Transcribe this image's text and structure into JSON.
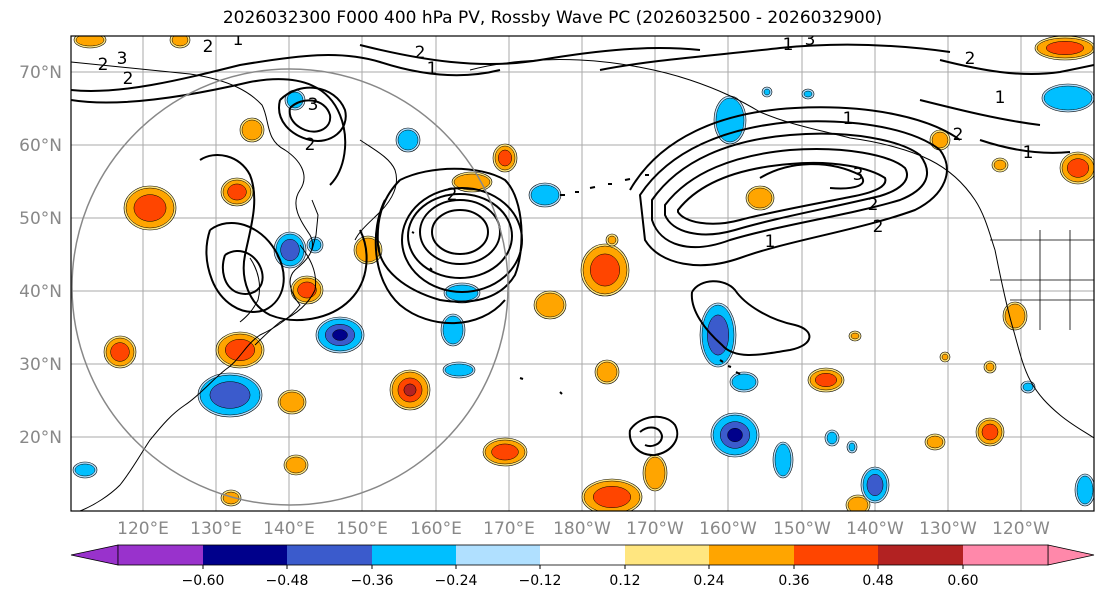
{
  "title": "2026032300 F000 400 hPa PV, Rossby Wave PC (2026032500 - 2026032900)",
  "lat_labels": [
    "70°N",
    "60°N",
    "50°N",
    "40°N",
    "30°N",
    "20°N"
  ],
  "lon_labels": [
    "120°E",
    "130°E",
    "140°E",
    "150°E",
    "160°E",
    "170°E",
    "180°W",
    "170°W",
    "160°W",
    "150°W",
    "140°W",
    "130°W",
    "120°W"
  ],
  "colorbar": {
    "ticks": [
      "−0.60",
      "−0.48",
      "−0.36",
      "−0.24",
      "−0.12",
      "0.12",
      "0.24",
      "0.36",
      "0.48",
      "0.60"
    ],
    "colors": [
      "#9932cc",
      "#00008b",
      "#3b5bcc",
      "#00bfff",
      "#b0e0ff",
      "#ffffff",
      "#ffe680",
      "#ffa500",
      "#ff4500",
      "#b22222",
      "#ff88aa"
    ]
  },
  "contour_labels": [
    "2",
    "3",
    "2",
    "1",
    "2",
    "2",
    "3",
    "2",
    "1",
    "2",
    "3",
    "2",
    "1",
    "2",
    "1",
    "3",
    "1",
    "2",
    "1",
    "2",
    "1"
  ],
  "colors": {
    "pos_light": "#ffa500",
    "pos_mid": "#ff4500",
    "pos_dark": "#b22222",
    "neg_light": "#00bfff",
    "neg_mid": "#3b5bcc",
    "neg_dark": "#00008b"
  }
}
